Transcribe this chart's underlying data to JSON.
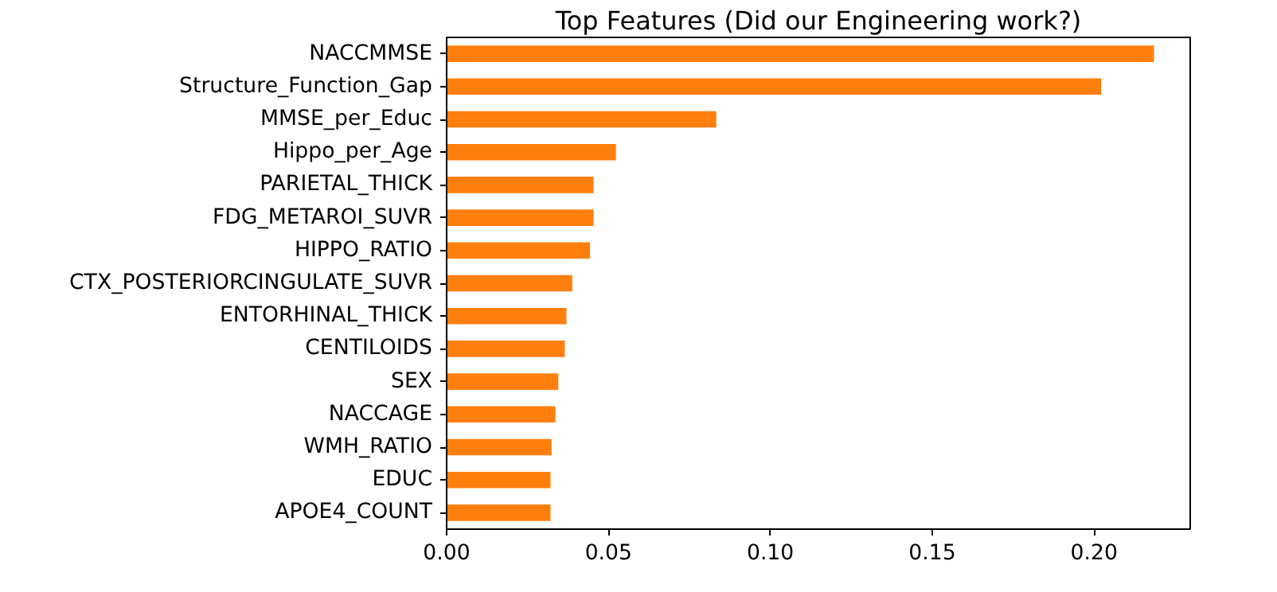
{
  "chart_data": {
    "type": "bar",
    "orientation": "horizontal",
    "title": "Top Features (Did our Engineering work?)",
    "categories": [
      "NACCMMSE",
      "Structure_Function_Gap",
      "MMSE_per_Educ",
      "Hippo_per_Age",
      "PARIETAL_THICK",
      "FDG_METAROI_SUVR",
      "HIPPO_RATIO",
      "CTX_POSTERIORCINGULATE_SUVR",
      "ENTORHINAL_THICK",
      "CENTILOIDS",
      "SEX",
      "NACCAGE",
      "WMH_RATIO",
      "EDUC",
      "APOE4_COUNT"
    ],
    "values": [
      0.2185,
      0.2022,
      0.0833,
      0.0523,
      0.0454,
      0.0454,
      0.0443,
      0.0388,
      0.037,
      0.0365,
      0.0345,
      0.0336,
      0.0324,
      0.0321,
      0.0321
    ],
    "color": "#ff7f0e",
    "xlim": [
      0,
      0.2297
    ],
    "xticks": [
      {
        "value": 0,
        "label": "0.00"
      },
      0.05,
      {
        "value": 0.1,
        "label": "0.10"
      },
      0.15,
      {
        "value": 0.2,
        "label": "0.20"
      }
    ],
    "grid": false
  }
}
